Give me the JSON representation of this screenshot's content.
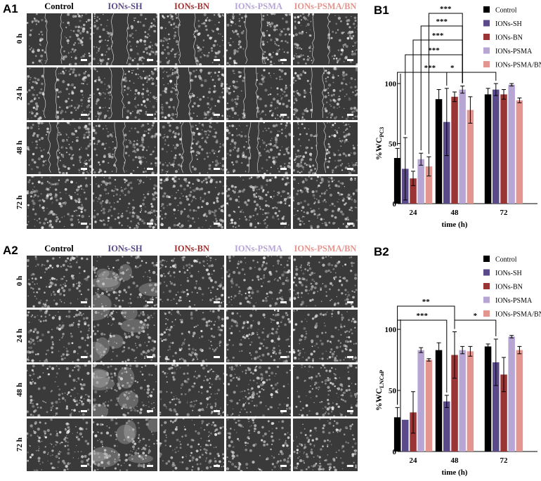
{
  "panels": {
    "a1_label": "A1",
    "a2_label": "A2",
    "b1_label": "B1",
    "b2_label": "B2"
  },
  "groups": [
    {
      "name": "Control",
      "color": "#000000"
    },
    {
      "name": "IONs-SH",
      "color": "#5b4a8a"
    },
    {
      "name": "IONs-BN",
      "color": "#9b3434"
    },
    {
      "name": "IONs-PSMA",
      "color": "#b7a6d4"
    },
    {
      "name": "IONs-PSMA/BN",
      "color": "#e3958f"
    }
  ],
  "time_rows": [
    "0 h",
    "24 h",
    "48 h",
    "72 h"
  ],
  "micrographs": {
    "a1": {
      "texture": "pc3",
      "wound_visible_rows": [
        0,
        1,
        2
      ]
    },
    "a2": {
      "texture": "lncap"
    }
  },
  "chart_data": [
    {
      "type": "bar",
      "panel": "B1",
      "xlabel": "time (h)",
      "ylabel_main": "%WC",
      "ylabel_sub": "PC3",
      "categories": [
        "24",
        "48",
        "72"
      ],
      "ylim": [
        0,
        100
      ],
      "yticks": [
        0,
        50,
        100
      ],
      "series": [
        {
          "name": "Control",
          "values": [
            38,
            87,
            91
          ],
          "errors": [
            8,
            8,
            5
          ]
        },
        {
          "name": "IONs-SH",
          "values": [
            29,
            68,
            95
          ],
          "errors": [
            26,
            28,
            5
          ]
        },
        {
          "name": "IONs-BN",
          "values": [
            21,
            89,
            91
          ],
          "errors": [
            6,
            4,
            4
          ]
        },
        {
          "name": "IONs-PSMA",
          "values": [
            37,
            95,
            99
          ],
          "errors": [
            5,
            3,
            1
          ]
        },
        {
          "name": "IONs-PSMA/BN",
          "values": [
            31,
            78,
            86
          ],
          "errors": [
            8,
            11,
            2
          ]
        }
      ],
      "legend_position": "top-right",
      "significance": [
        {
          "from": [
            0,
            0
          ],
          "to": [
            1,
            3
          ],
          "label": "***"
        },
        {
          "from": [
            0,
            1
          ],
          "to": [
            1,
            3
          ],
          "label": "***"
        },
        {
          "from": [
            0,
            2
          ],
          "to": [
            1,
            3
          ],
          "label": "***"
        },
        {
          "from": [
            0,
            3
          ],
          "to": [
            1,
            3
          ],
          "label": "***"
        },
        {
          "from": [
            0,
            4
          ],
          "to": [
            1,
            3
          ],
          "label": "***"
        },
        {
          "from": [
            1,
            1
          ],
          "to": [
            2,
            1
          ],
          "label": "*"
        }
      ]
    },
    {
      "type": "bar",
      "panel": "B2",
      "xlabel": "time (h)",
      "ylabel_main": "%WC",
      "ylabel_sub": "LNCaP",
      "categories": [
        "24",
        "48",
        "72"
      ],
      "ylim": [
        0,
        100
      ],
      "yticks": [
        0,
        50,
        100
      ],
      "series": [
        {
          "name": "Control",
          "values": [
            28,
            83,
            86
          ],
          "errors": [
            8,
            6,
            2
          ]
        },
        {
          "name": "IONs-SH",
          "values": [
            26,
            41,
            73
          ],
          "errors": [
            0,
            5,
            19
          ]
        },
        {
          "name": "IONs-BN",
          "values": [
            32,
            79,
            63
          ],
          "errors": [
            17,
            19,
            14
          ]
        },
        {
          "name": "IONs-PSMA",
          "values": [
            83,
            83,
            94
          ],
          "errors": [
            2,
            3,
            1
          ]
        },
        {
          "name": "IONs-PSMA/BN",
          "values": [
            75,
            82,
            83
          ],
          "errors": [
            1,
            4,
            3
          ]
        }
      ],
      "legend_position": "top-right",
      "significance": [
        {
          "from": [
            0,
            0
          ],
          "to": [
            1,
            2
          ],
          "label": "**"
        },
        {
          "from": [
            0,
            0
          ],
          "to": [
            1,
            1
          ],
          "label": "***"
        },
        {
          "from": [
            1,
            2
          ],
          "to": [
            2,
            1
          ],
          "label": "*"
        }
      ]
    }
  ]
}
